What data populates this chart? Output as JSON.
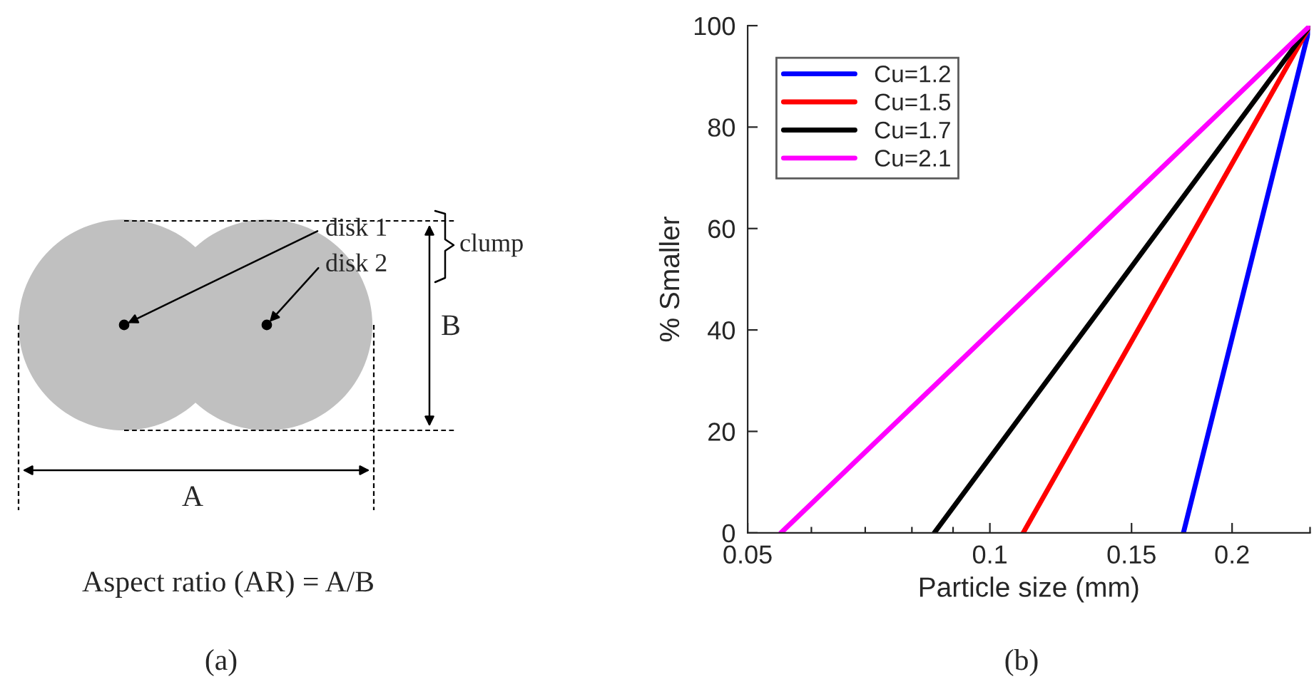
{
  "chart_data": [
    {
      "type": "other",
      "annotations": [
        "disk 1",
        "disk 2",
        "clump",
        "B",
        "A",
        "Aspect ratio (AR) = A/B",
        "(a)"
      ]
    },
    {
      "type": "line",
      "xlabel": "Particle size (mm)",
      "ylabel": "% Smaller",
      "log": "x",
      "legend": "top left",
      "grid": false,
      "line_style": "solid",
      "marker": "none",
      "xlim": [
        0.05,
        0.25
      ],
      "ylim": [
        0,
        100
      ],
      "xticks": [
        0.05,
        {
          "value": 0.06,
          "label": null
        },
        {
          "value": 0.07,
          "label": null
        },
        {
          "value": 0.08,
          "label": null
        },
        {
          "value": 0.09,
          "label": null
        },
        0.1,
        0.15,
        0.2,
        {
          "value": 0.25,
          "label": null
        }
      ],
      "yticks": [
        0,
        20,
        40,
        60,
        80,
        100
      ],
      "annotations": [
        "(b)"
      ],
      "series": [
        {
          "name": "Cu=1.2",
          "color": "#0000ff",
          "x": [
            0.174,
            0.25
          ],
          "values": [
            0,
            100
          ]
        },
        {
          "name": "Cu=1.5",
          "color": "#ff0000",
          "x": [
            0.11,
            0.25
          ],
          "values": [
            0,
            100
          ]
        },
        {
          "name": "Cu=1.7",
          "color": "#000000",
          "x": [
            0.0853,
            0.25
          ],
          "values": [
            0,
            100
          ]
        },
        {
          "name": "Cu=2.1",
          "color": "#ff00ff",
          "x": [
            0.055,
            0.25
          ],
          "values": [
            0,
            100
          ]
        }
      ]
    }
  ]
}
